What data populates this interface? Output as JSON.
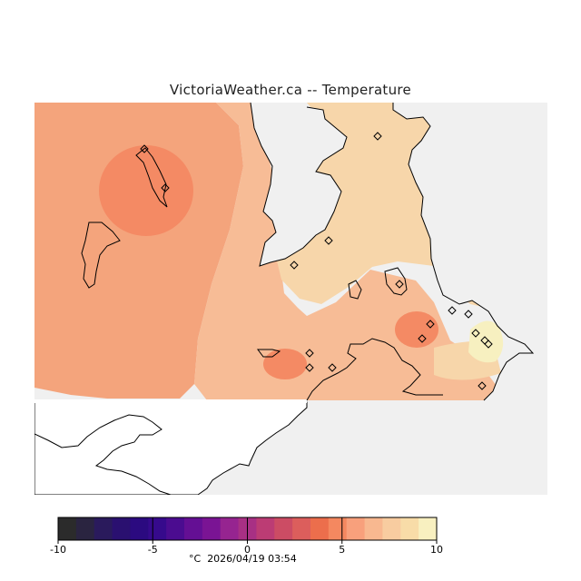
{
  "title": "VictoriaWeather.ca -- Temperature",
  "legend": {
    "unit": "°C",
    "timestamp": "2026/04/19 03:54",
    "min": -10,
    "max": 10,
    "step": 1,
    "ticks": [
      "-10",
      "-5",
      "0",
      "5",
      "10"
    ],
    "colors": [
      "#2b2b2b",
      "#2a2440",
      "#2a1a5c",
      "#2a1070",
      "#2b0a80",
      "#360a8c",
      "#4b0c90",
      "#640f94",
      "#7a1494",
      "#962490",
      "#a83084",
      "#bc3c74",
      "#cc4c64",
      "#dc5e5c",
      "#ec6e4c",
      "#f48860",
      "#f8a07c",
      "#f8b890",
      "#f8cca0",
      "#f8dca8",
      "#f8f0c0"
    ]
  },
  "map": {
    "background_color": "#f0f0f0",
    "zone_colors": {
      "warm": "#f48a64",
      "mild": "#f4a47c",
      "cool": "#f7bc96",
      "cooler": "#f7d6aa",
      "coolest": "#f7f0c0"
    },
    "station_symbol": "diamond-icon"
  }
}
